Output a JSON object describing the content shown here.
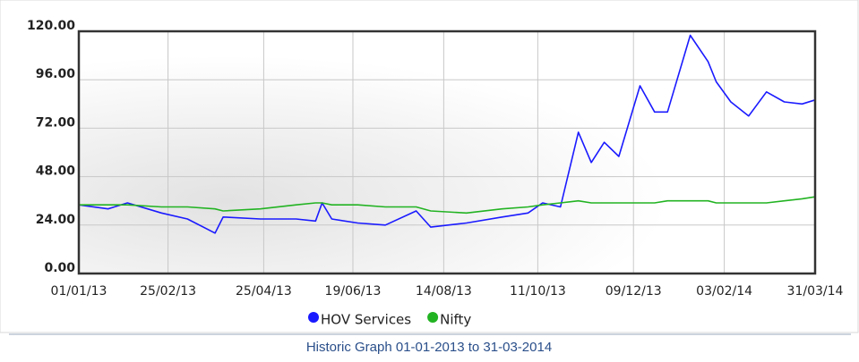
{
  "chart_data": {
    "type": "line",
    "caption": "Historic Graph 01-01-2013 to 31-03-2014",
    "x": [
      "2013-01-01",
      "2013-01-19",
      "2013-01-31",
      "2013-02-21",
      "2013-03-09",
      "2013-03-26",
      "2013-03-31",
      "2013-04-23",
      "2013-05-15",
      "2013-05-27",
      "2013-05-31",
      "2013-06-06",
      "2013-06-22",
      "2013-07-09",
      "2013-07-28",
      "2013-08-06",
      "2013-08-28",
      "2013-09-19",
      "2013-10-05",
      "2013-10-14",
      "2013-10-25",
      "2013-11-05",
      "2013-11-13",
      "2013-11-21",
      "2013-11-30",
      "2013-12-13",
      "2013-12-22",
      "2013-12-30",
      "2014-01-13",
      "2014-01-24",
      "2014-01-29",
      "2014-02-07",
      "2014-02-18",
      "2014-03-01",
      "2014-03-12",
      "2014-03-23",
      "2014-03-31"
    ],
    "series": [
      {
        "name": "HOV Services",
        "color": "#1a1aff",
        "values": [
          34,
          32,
          35,
          30,
          27,
          20,
          28,
          27,
          27,
          26,
          35,
          27,
          25,
          24,
          31,
          23,
          25,
          28,
          30,
          35,
          33,
          70,
          55,
          65,
          58,
          93,
          80,
          80,
          118,
          105,
          95,
          85,
          78,
          90,
          85,
          84,
          86
        ]
      },
      {
        "name": "Nifty",
        "color": "#22b322",
        "values": [
          34,
          34,
          34,
          33,
          33,
          32,
          31,
          32,
          34,
          35,
          35,
          34,
          34,
          33,
          33,
          31,
          30,
          32,
          33,
          34,
          35,
          36,
          35,
          35,
          35,
          35,
          35,
          36,
          36,
          36,
          35,
          35,
          35,
          35,
          36,
          37,
          38
        ]
      }
    ],
    "xlim": [
      "2013-01-01",
      "2014-03-31"
    ],
    "xticks": [
      {
        "value": "2013-01-01",
        "label": "01/01/13"
      },
      {
        "value": "2013-02-25",
        "label": "25/02/13"
      },
      {
        "value": "2013-04-25",
        "label": "25/04/13"
      },
      {
        "value": "2013-06-19",
        "label": "19/06/13"
      },
      {
        "value": "2013-08-14",
        "label": "14/08/13"
      },
      {
        "value": "2013-10-11",
        "label": "11/10/13"
      },
      {
        "value": "2013-12-09",
        "label": "09/12/13"
      },
      {
        "value": "2014-02-03",
        "label": "03/02/14"
      },
      {
        "value": "2014-03-31",
        "label": "31/03/14"
      }
    ],
    "ylim": [
      0,
      120
    ],
    "yticks": [
      {
        "value": 0,
        "label": "0.00"
      },
      {
        "value": 24,
        "label": "24.00"
      },
      {
        "value": 48,
        "label": "48.00"
      },
      {
        "value": 72,
        "label": "72.00"
      },
      {
        "value": 96,
        "label": "96.00"
      },
      {
        "value": 120,
        "label": "120.00"
      }
    ],
    "grid": true
  }
}
